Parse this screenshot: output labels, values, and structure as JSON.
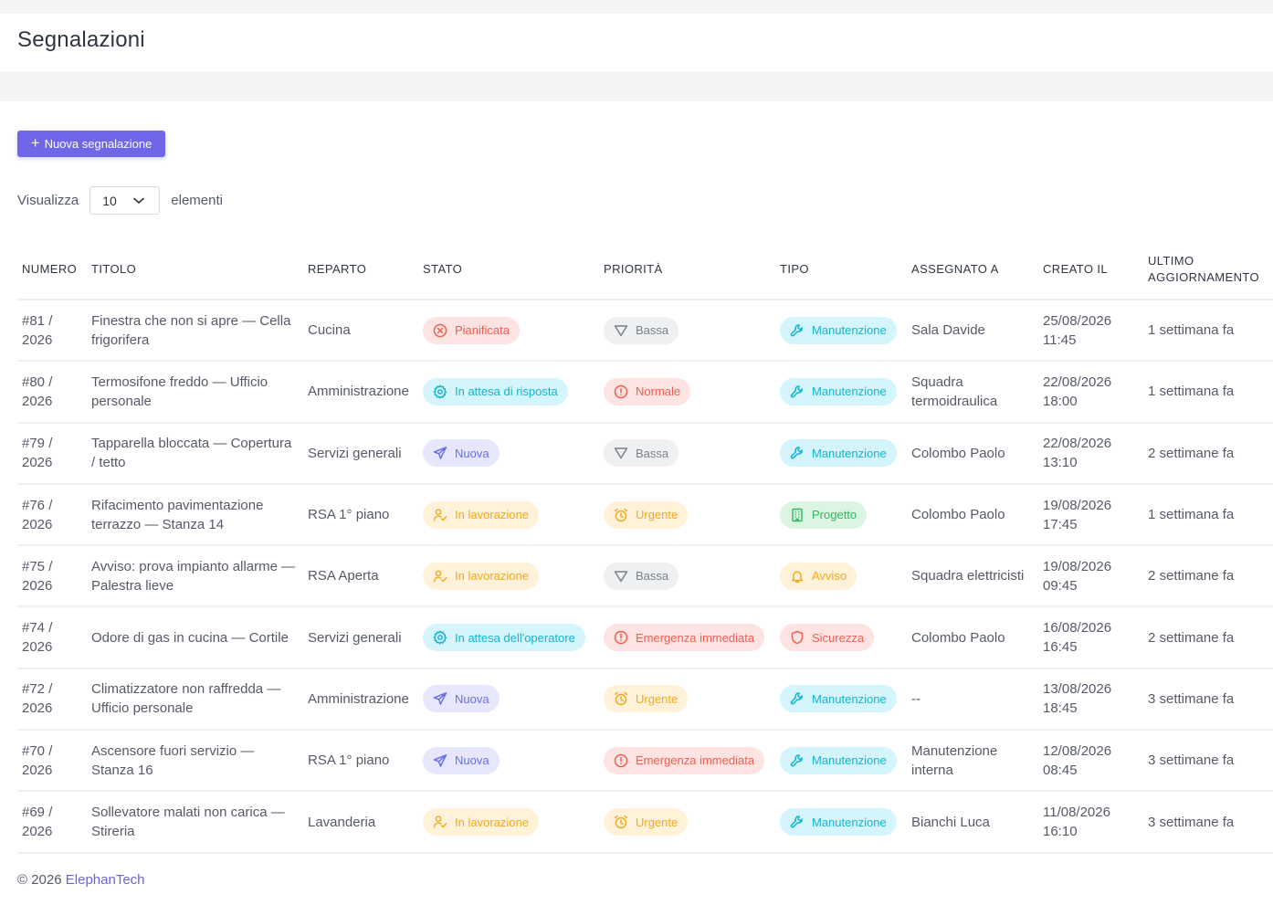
{
  "page": {
    "title": "Segnalazioni"
  },
  "toolbar": {
    "new_button_label": "Nuova segnalazione"
  },
  "length_menu": {
    "prefix": "Visualizza",
    "value": "10",
    "suffix": "elementi"
  },
  "table": {
    "headers": {
      "numero": "NUMERO",
      "titolo": "TITOLO",
      "reparto": "REPARTO",
      "stato": "STATO",
      "priorita": "PRIORITÀ",
      "tipo": "TIPO",
      "assegnato": "ASSEGNATO A",
      "creato": "CREATO IL",
      "aggiornamento": "ULTIMO AGGIORNAMENTO"
    },
    "rows": [
      {
        "numero": "#81 / 2026",
        "titolo": "Finestra che non si apre — Cella frigorifera",
        "reparto": "Cucina",
        "stato": {
          "label": "Pianificata",
          "color": "red",
          "icon": "circle-x-icon"
        },
        "priorita": {
          "label": "Bassa",
          "color": "gray",
          "icon": "triangle-down-icon"
        },
        "tipo": {
          "label": "Manutenzione",
          "color": "cyan",
          "icon": "wrench-icon"
        },
        "assegnato": "Sala Davide",
        "creato": "25/08/2026 11:45",
        "aggiornamento": "1 settimana fa"
      },
      {
        "numero": "#80 / 2026",
        "titolo": "Termosifone freddo — Ufficio personale",
        "reparto": "Amministrazione",
        "stato": {
          "label": "In attesa di risposta",
          "color": "cyan",
          "icon": "gear-icon"
        },
        "priorita": {
          "label": "Normale",
          "color": "red",
          "icon": "alert-circle-icon"
        },
        "tipo": {
          "label": "Manutenzione",
          "color": "cyan",
          "icon": "wrench-icon"
        },
        "assegnato": "Squadra termoidraulica",
        "creato": "22/08/2026 18:00",
        "aggiornamento": "1 settimana fa"
      },
      {
        "numero": "#79 / 2026",
        "titolo": "Tapparella bloccata — Copertura / tetto",
        "reparto": "Servizi generali",
        "stato": {
          "label": "Nuova",
          "color": "indigo",
          "icon": "send-icon"
        },
        "priorita": {
          "label": "Bassa",
          "color": "gray",
          "icon": "triangle-down-icon"
        },
        "tipo": {
          "label": "Manutenzione",
          "color": "cyan",
          "icon": "wrench-icon"
        },
        "assegnato": "Colombo Paolo",
        "creato": "22/08/2026 13:10",
        "aggiornamento": "2 settimane fa"
      },
      {
        "numero": "#76 / 2026",
        "titolo": "Rifacimento pavimentazione terrazzo — Stanza 14",
        "reparto": "RSA 1° piano",
        "stato": {
          "label": "In lavorazione",
          "color": "amber",
          "icon": "user-check-icon"
        },
        "priorita": {
          "label": "Urgente",
          "color": "amber",
          "icon": "alarm-clock-icon"
        },
        "tipo": {
          "label": "Progetto",
          "color": "green",
          "icon": "building-icon"
        },
        "assegnato": "Colombo Paolo",
        "creato": "19/08/2026 17:45",
        "aggiornamento": "1 settimana fa"
      },
      {
        "numero": "#75 / 2026",
        "titolo": "Avviso: prova impianto allarme — Palestra lieve",
        "reparto": "RSA Aperta",
        "stato": {
          "label": "In lavorazione",
          "color": "amber",
          "icon": "user-check-icon"
        },
        "priorita": {
          "label": "Bassa",
          "color": "gray",
          "icon": "triangle-down-icon"
        },
        "tipo": {
          "label": "Avviso",
          "color": "amber",
          "icon": "bell-icon"
        },
        "assegnato": "Squadra elettricisti",
        "creato": "19/08/2026 09:45",
        "aggiornamento": "2 settimane fa"
      },
      {
        "numero": "#74 / 2026",
        "titolo": "Odore di gas in cucina — Cortile",
        "reparto": "Servizi generali",
        "stato": {
          "label": "In attesa dell'operatore",
          "color": "cyan",
          "icon": "gear-icon"
        },
        "priorita": {
          "label": "Emergenza immediata",
          "color": "red",
          "icon": "alert-circle-icon"
        },
        "tipo": {
          "label": "Sicurezza",
          "color": "red",
          "icon": "shield-icon"
        },
        "assegnato": "Colombo Paolo",
        "creato": "16/08/2026 16:45",
        "aggiornamento": "2 settimane fa"
      },
      {
        "numero": "#72 / 2026",
        "titolo": "Climatizzatore non raffredda — Ufficio personale",
        "reparto": "Amministrazione",
        "stato": {
          "label": "Nuova",
          "color": "indigo",
          "icon": "send-icon"
        },
        "priorita": {
          "label": "Urgente",
          "color": "amber",
          "icon": "alarm-clock-icon"
        },
        "tipo": {
          "label": "Manutenzione",
          "color": "cyan",
          "icon": "wrench-icon"
        },
        "assegnato": "--",
        "creato": "13/08/2026 18:45",
        "aggiornamento": "3 settimane fa"
      },
      {
        "numero": "#70 / 2026",
        "titolo": "Ascensore fuori servizio — Stanza 16",
        "reparto": "RSA 1° piano",
        "stato": {
          "label": "Nuova",
          "color": "indigo",
          "icon": "send-icon"
        },
        "priorita": {
          "label": "Emergenza immediata",
          "color": "red",
          "icon": "alert-circle-icon"
        },
        "tipo": {
          "label": "Manutenzione",
          "color": "cyan",
          "icon": "wrench-icon"
        },
        "assegnato": "Manutenzione interna",
        "creato": "12/08/2026 08:45",
        "aggiornamento": "3 settimane fa"
      },
      {
        "numero": "#69 / 2026",
        "titolo": "Sollevatore malati non carica — Stireria",
        "reparto": "Lavanderia",
        "stato": {
          "label": "In lavorazione",
          "color": "amber",
          "icon": "user-check-icon"
        },
        "priorita": {
          "label": "Urgente",
          "color": "amber",
          "icon": "alarm-clock-icon"
        },
        "tipo": {
          "label": "Manutenzione",
          "color": "cyan",
          "icon": "wrench-icon"
        },
        "assegnato": "Bianchi Luca",
        "creato": "11/08/2026 16:10",
        "aggiornamento": "3 settimane fa"
      }
    ]
  },
  "footer": {
    "copyright": "© 2026",
    "brand": "ElephanTech"
  },
  "colors": {
    "accent": "#6f67e8",
    "red": "#ec5e52",
    "cyan": "#14b3d2",
    "indigo": "#6871e4",
    "amber": "#f3a81d",
    "gray": "#7c818b",
    "green": "#32b45f"
  }
}
